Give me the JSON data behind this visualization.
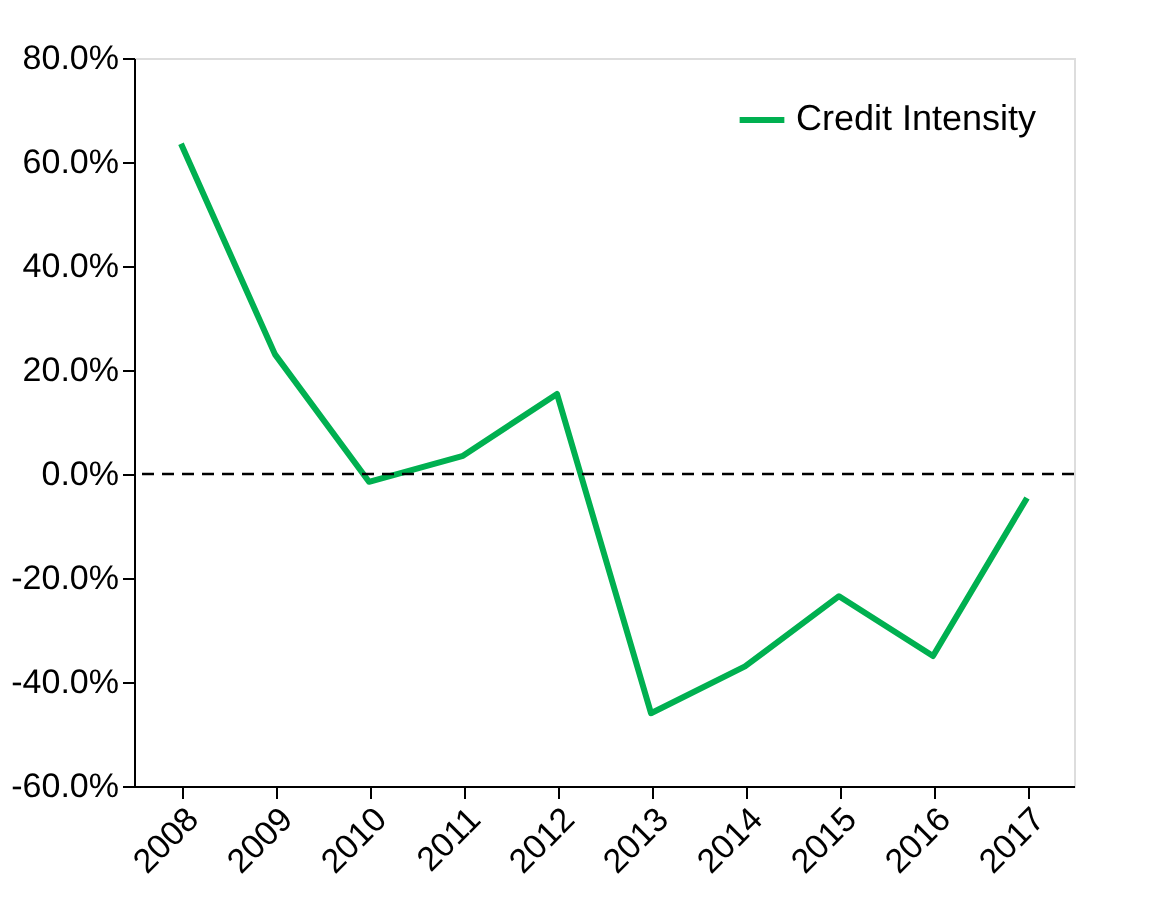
{
  "chart_data": {
    "type": "line",
    "categories": [
      "2008",
      "2009",
      "2010",
      "2011",
      "2012",
      "2013",
      "2014",
      "2015",
      "2016",
      "2017"
    ],
    "series": [
      {
        "name": "Credit Intensity",
        "color": "#00b050",
        "values": [
          63.5,
          23,
          -1.5,
          3.5,
          15.4,
          -46,
          -37,
          -23.5,
          -35,
          -4.6
        ]
      }
    ],
    "ylim": [
      -60,
      80
    ],
    "yticks": [
      {
        "value": -60,
        "label": "-60.0%"
      },
      {
        "value": -40,
        "label": "-40.0%"
      },
      {
        "value": -20,
        "label": "-20.0%"
      },
      {
        "value": 0,
        "label": "0.0%"
      },
      {
        "value": 20,
        "label": "20.0%"
      },
      {
        "value": 40,
        "label": "40.0%"
      },
      {
        "value": 60,
        "label": "60.0%"
      },
      {
        "value": 80,
        "label": "80.0%"
      }
    ],
    "ref_lines": [
      {
        "axis": "y",
        "value": 0,
        "label": null,
        "color": "#000000",
        "line_style": "dashed"
      }
    ],
    "legend": "top right",
    "grid": false,
    "marker": "none",
    "line_style": "solid"
  }
}
